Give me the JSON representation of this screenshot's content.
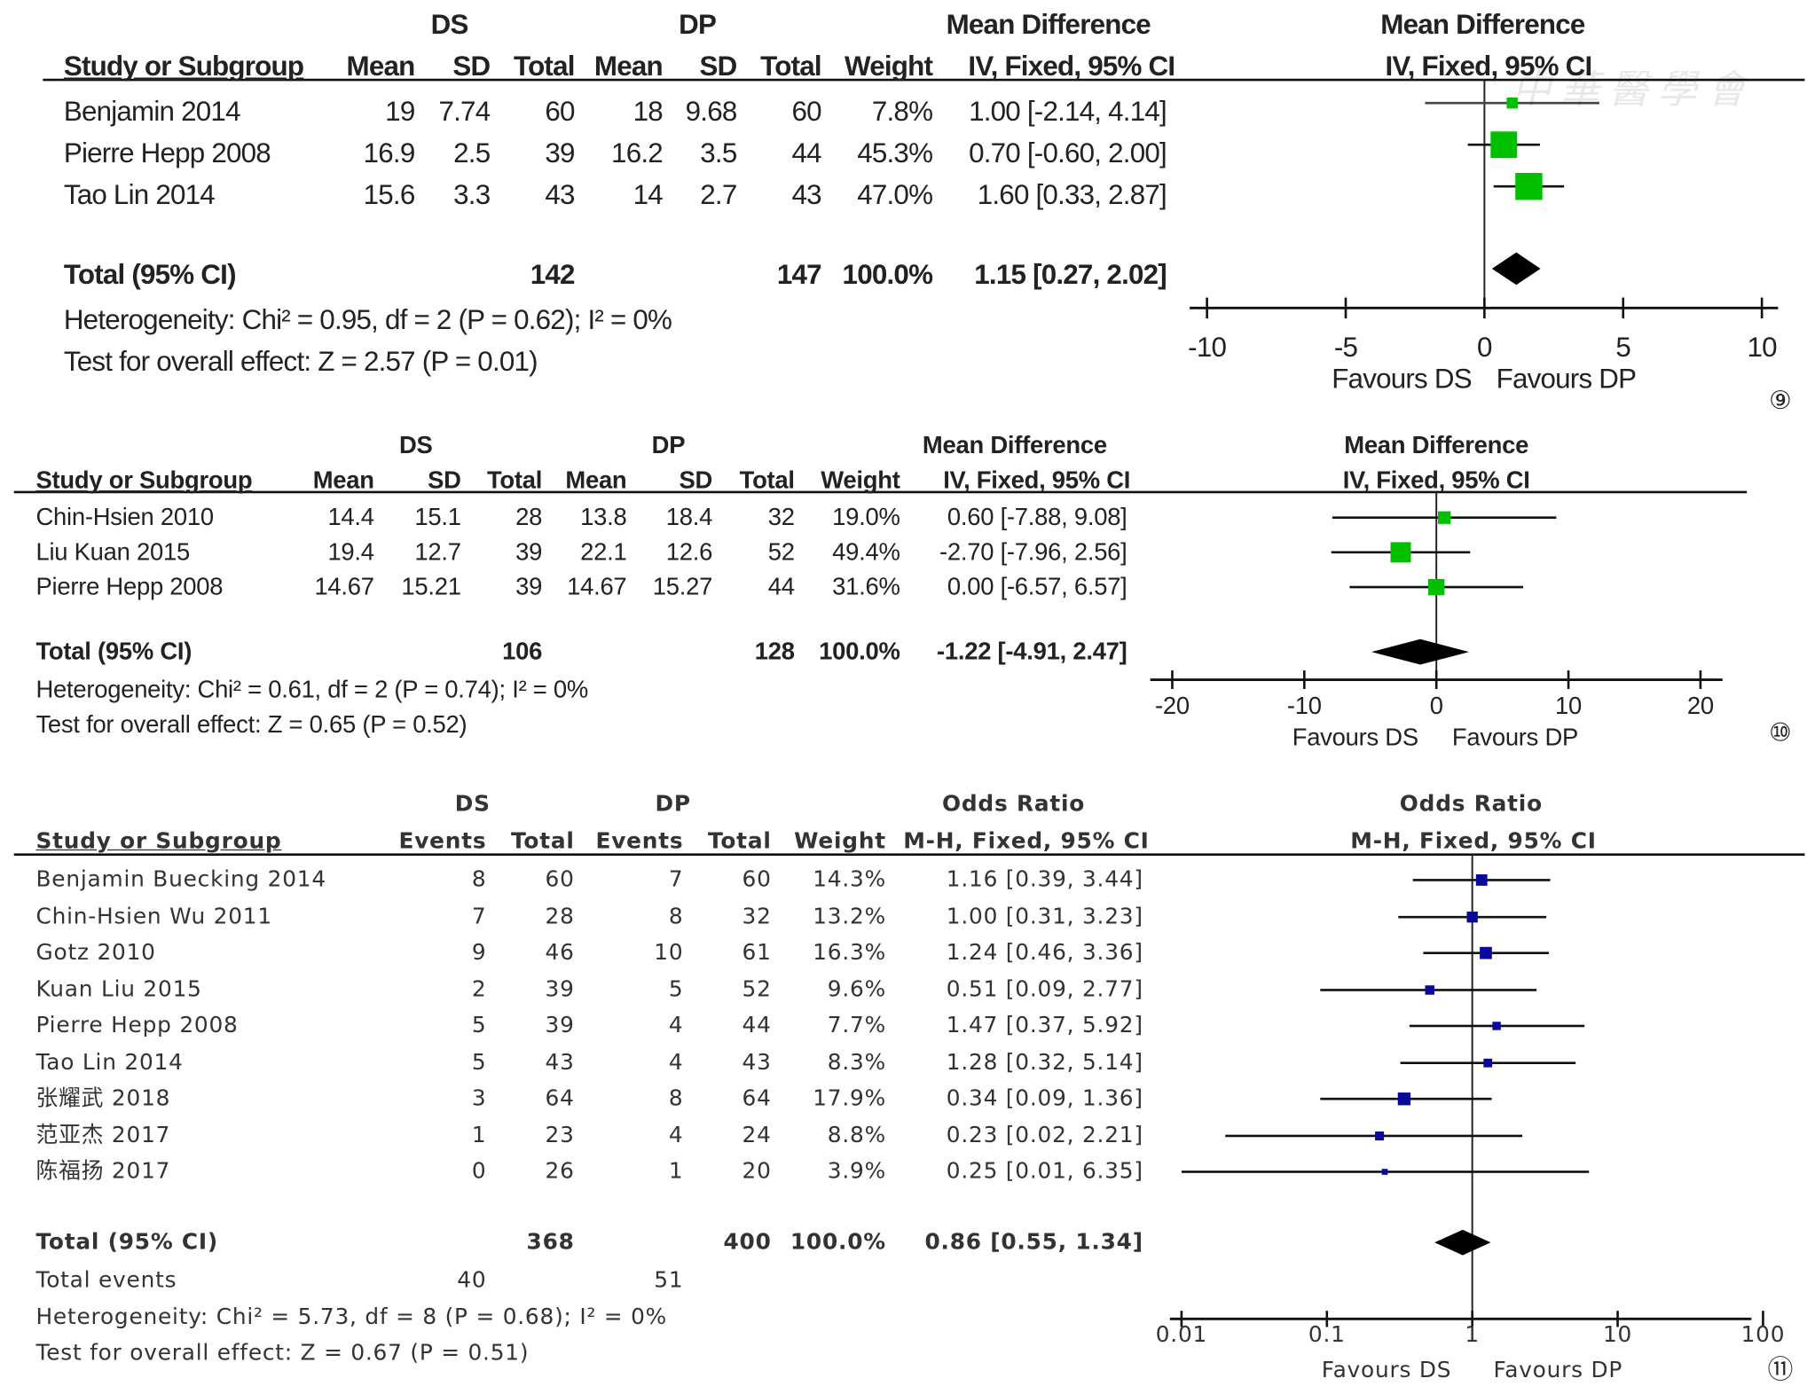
{
  "watermark": "中華醫學會",
  "panels": [
    {
      "group_labels": {
        "left": "DS",
        "right": "DP",
        "effect": "Mean Difference",
        "plot_title": "Mean Difference",
        "plot_method": "IV, Fixed, 95% CI"
      },
      "column_headers": [
        "Study or Subgroup",
        "Mean",
        "SD",
        "Total",
        "Mean",
        "SD",
        "Total",
        "Weight",
        "IV, Fixed, 95% CI"
      ],
      "rows": [
        {
          "name": "Benjamin 2014",
          "cells": [
            "19",
            "7.74",
            "60",
            "18",
            "9.68",
            "60",
            "7.8%"
          ],
          "ci": "1.00 [-2.14, 4.14]"
        },
        {
          "name": "Pierre Hepp 2008",
          "cells": [
            "16.9",
            "2.5",
            "39",
            "16.2",
            "3.5",
            "44",
            "45.3%"
          ],
          "ci": "0.70 [-0.60, 2.00]"
        },
        {
          "name": "Tao Lin 2014",
          "cells": [
            "15.6",
            "3.3",
            "43",
            "14",
            "2.7",
            "43",
            "47.0%"
          ],
          "ci": "1.60 [0.33, 2.87]"
        }
      ],
      "total": {
        "label": "Total (95% CI)",
        "ds_total": "142",
        "dp_total": "147",
        "weight": "100.0%",
        "ci": "1.15 [0.27, 2.02]"
      },
      "heterogeneity": "Heterogeneity: Chi² = 0.95, df = 2 (P = 0.62); I² = 0%",
      "overall_test": "Test for overall effect: Z = 2.57 (P = 0.01)"
    },
    {
      "group_labels": {
        "left": "DS",
        "right": "DP",
        "effect": "Mean Difference",
        "plot_title": "Mean Difference",
        "plot_method": "IV, Fixed, 95% CI"
      },
      "column_headers": [
        "Study or Subgroup",
        "Mean",
        "SD",
        "Total",
        "Mean",
        "SD",
        "Total",
        "Weight",
        "IV, Fixed, 95% CI"
      ],
      "rows": [
        {
          "name": "Chin-Hsien 2010",
          "cells": [
            "14.4",
            "15.1",
            "28",
            "13.8",
            "18.4",
            "32",
            "19.0%"
          ],
          "ci": "0.60 [-7.88, 9.08]"
        },
        {
          "name": "Liu Kuan 2015",
          "cells": [
            "19.4",
            "12.7",
            "39",
            "22.1",
            "12.6",
            "52",
            "49.4%"
          ],
          "ci": "-2.70 [-7.96, 2.56]"
        },
        {
          "name": "Pierre Hepp 2008",
          "cells": [
            "14.67",
            "15.21",
            "39",
            "14.67",
            "15.27",
            "44",
            "31.6%"
          ],
          "ci": "0.00 [-6.57, 6.57]"
        }
      ],
      "total": {
        "label": "Total (95% CI)",
        "ds_total": "106",
        "dp_total": "128",
        "weight": "100.0%",
        "ci": "-1.22 [-4.91, 2.47]"
      },
      "heterogeneity": "Heterogeneity: Chi² = 0.61, df = 2 (P = 0.74); I² = 0%",
      "overall_test": "Test for overall effect: Z = 0.65 (P = 0.52)"
    },
    {
      "group_labels": {
        "left": "DS",
        "right": "DP",
        "effect": "Odds Ratio",
        "plot_title": "Odds Ratio",
        "plot_method": "M-H, Fixed, 95% CI"
      },
      "column_headers": [
        "Study or Subgroup",
        "Events",
        "Total",
        "Events",
        "Total",
        "Weight",
        "M-H, Fixed, 95% CI"
      ],
      "rows": [
        {
          "name": "Benjamin Buecking 2014",
          "cells": [
            "8",
            "60",
            "7",
            "60",
            "14.3%"
          ],
          "ci": "1.16 [0.39, 3.44]"
        },
        {
          "name": "Chin-Hsien Wu 2011",
          "cells": [
            "7",
            "28",
            "8",
            "32",
            "13.2%"
          ],
          "ci": "1.00 [0.31, 3.23]"
        },
        {
          "name": "Gotz 2010",
          "cells": [
            "9",
            "46",
            "10",
            "61",
            "16.3%"
          ],
          "ci": "1.24 [0.46, 3.36]"
        },
        {
          "name": "Kuan Liu 2015",
          "cells": [
            "2",
            "39",
            "5",
            "52",
            "9.6%"
          ],
          "ci": "0.51 [0.09, 2.77]"
        },
        {
          "name": "Pierre Hepp 2008",
          "cells": [
            "5",
            "39",
            "4",
            "44",
            "7.7%"
          ],
          "ci": "1.47 [0.37, 5.92]"
        },
        {
          "name": "Tao Lin 2014",
          "cells": [
            "5",
            "43",
            "4",
            "43",
            "8.3%"
          ],
          "ci": "1.28 [0.32, 5.14]"
        },
        {
          "name": "张耀武 2018",
          "cells": [
            "3",
            "64",
            "8",
            "64",
            "17.9%"
          ],
          "ci": "0.34 [0.09, 1.36]"
        },
        {
          "name": "范亚杰 2017",
          "cells": [
            "1",
            "23",
            "4",
            "24",
            "8.8%"
          ],
          "ci": "0.23 [0.02, 2.21]"
        },
        {
          "name": "陈福扬 2017",
          "cells": [
            "0",
            "26",
            "1",
            "20",
            "3.9%"
          ],
          "ci": "0.25 [0.01, 6.35]"
        }
      ],
      "total": {
        "label": "Total (95% CI)",
        "ds_total": "368",
        "dp_total": "400",
        "weight": "100.0%",
        "ci": "0.86 [0.55, 1.34]"
      },
      "total_events": {
        "label": "Total events",
        "ds": "40",
        "dp": "51"
      },
      "heterogeneity": "Heterogeneity: Chi² = 5.73, df = 8 (P = 0.68); I² = 0%",
      "overall_test": "Test for overall effect: Z = 0.67 (P = 0.51)"
    }
  ],
  "chart_data": [
    {
      "type": "forest",
      "scale": "linear",
      "xlim": [
        -10,
        10
      ],
      "ticks": [
        -10,
        -5,
        0,
        5,
        10
      ],
      "tick_labels": [
        "-10",
        "-5",
        "0",
        "5",
        "10"
      ],
      "xlabel_left": "Favours DS",
      "xlabel_right": "Favours DP",
      "panel_label": "⑨",
      "marker_color": "#00c000",
      "studies": [
        {
          "estimate": 1.0,
          "lower": -2.14,
          "upper": 4.14,
          "weight": 7.8
        },
        {
          "estimate": 0.7,
          "lower": -0.6,
          "upper": 2.0,
          "weight": 45.3
        },
        {
          "estimate": 1.6,
          "lower": 0.33,
          "upper": 2.87,
          "weight": 47.0
        }
      ],
      "total": {
        "estimate": 1.15,
        "lower": 0.27,
        "upper": 2.02
      }
    },
    {
      "type": "forest",
      "scale": "linear",
      "xlim": [
        -20,
        20
      ],
      "ticks": [
        -20,
        -10,
        0,
        10,
        20
      ],
      "tick_labels": [
        "-20",
        "-10",
        "0",
        "10",
        "20"
      ],
      "xlabel_left": "Favours DS",
      "xlabel_right": "Favours DP",
      "panel_label": "⑩",
      "marker_color": "#00c000",
      "studies": [
        {
          "estimate": 0.6,
          "lower": -7.88,
          "upper": 9.08,
          "weight": 19.0
        },
        {
          "estimate": -2.7,
          "lower": -7.96,
          "upper": 2.56,
          "weight": 49.4
        },
        {
          "estimate": 0.0,
          "lower": -6.57,
          "upper": 6.57,
          "weight": 31.6
        }
      ],
      "total": {
        "estimate": -1.22,
        "lower": -4.91,
        "upper": 2.47
      }
    },
    {
      "type": "forest",
      "scale": "log",
      "xlim": [
        0.01,
        100
      ],
      "ticks": [
        0.01,
        0.1,
        1,
        10,
        100
      ],
      "tick_labels": [
        "0.01",
        "0.1",
        "1",
        "10",
        "100"
      ],
      "xlabel_left": "Favours DS",
      "xlabel_right": "Favours DP",
      "panel_label": "⑪",
      "marker_color": "#0a0a9a",
      "studies": [
        {
          "estimate": 1.16,
          "lower": 0.39,
          "upper": 3.44,
          "weight": 14.3
        },
        {
          "estimate": 1.0,
          "lower": 0.31,
          "upper": 3.23,
          "weight": 13.2
        },
        {
          "estimate": 1.24,
          "lower": 0.46,
          "upper": 3.36,
          "weight": 16.3
        },
        {
          "estimate": 0.51,
          "lower": 0.09,
          "upper": 2.77,
          "weight": 9.6
        },
        {
          "estimate": 1.47,
          "lower": 0.37,
          "upper": 5.92,
          "weight": 7.7
        },
        {
          "estimate": 1.28,
          "lower": 0.32,
          "upper": 5.14,
          "weight": 8.3
        },
        {
          "estimate": 0.34,
          "lower": 0.09,
          "upper": 1.36,
          "weight": 17.9
        },
        {
          "estimate": 0.23,
          "lower": 0.02,
          "upper": 2.21,
          "weight": 8.8
        },
        {
          "estimate": 0.25,
          "lower": 0.01,
          "upper": 6.35,
          "weight": 3.9
        }
      ],
      "total": {
        "estimate": 0.86,
        "lower": 0.55,
        "upper": 1.34
      }
    }
  ]
}
